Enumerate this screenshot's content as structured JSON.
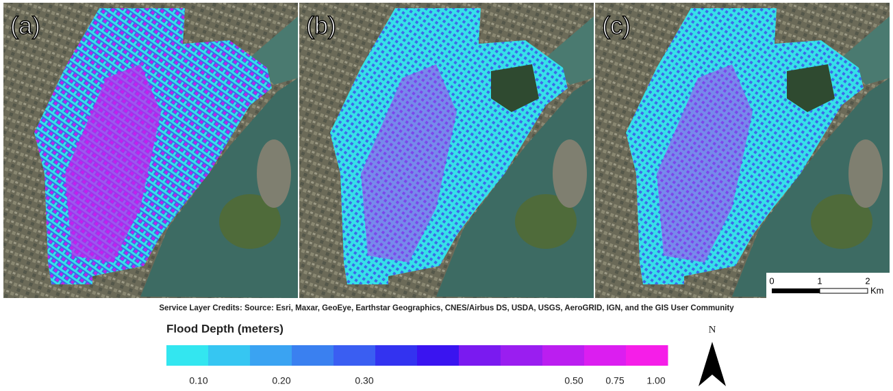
{
  "panels": [
    {
      "label": "(a)"
    },
    {
      "label": "(b)"
    },
    {
      "label": "(c)"
    }
  ],
  "scale_bar": {
    "labels": [
      "0",
      "1",
      "2"
    ],
    "unit": "Km"
  },
  "credits": "Service Layer Credits: Source: Esri, Maxar, GeoEye, Earthstar Geographics, CNES/Airbus DS, USDA, USGS, AeroGRID, IGN, and the GIS User Community",
  "legend": {
    "title": "Flood Depth (meters)",
    "colors": [
      "#33e6f0",
      "#36c6f2",
      "#3aa3f2",
      "#3a80f0",
      "#3a5ef2",
      "#3333f0",
      "#3a14f0",
      "#7a1af0",
      "#9a1ef0",
      "#bb1ef0",
      "#db1ef0",
      "#f51ee8"
    ],
    "ticks": [
      "0.10",
      "0.20",
      "0.30",
      "0.50",
      "0.75",
      "1.00"
    ]
  },
  "north": "N"
}
